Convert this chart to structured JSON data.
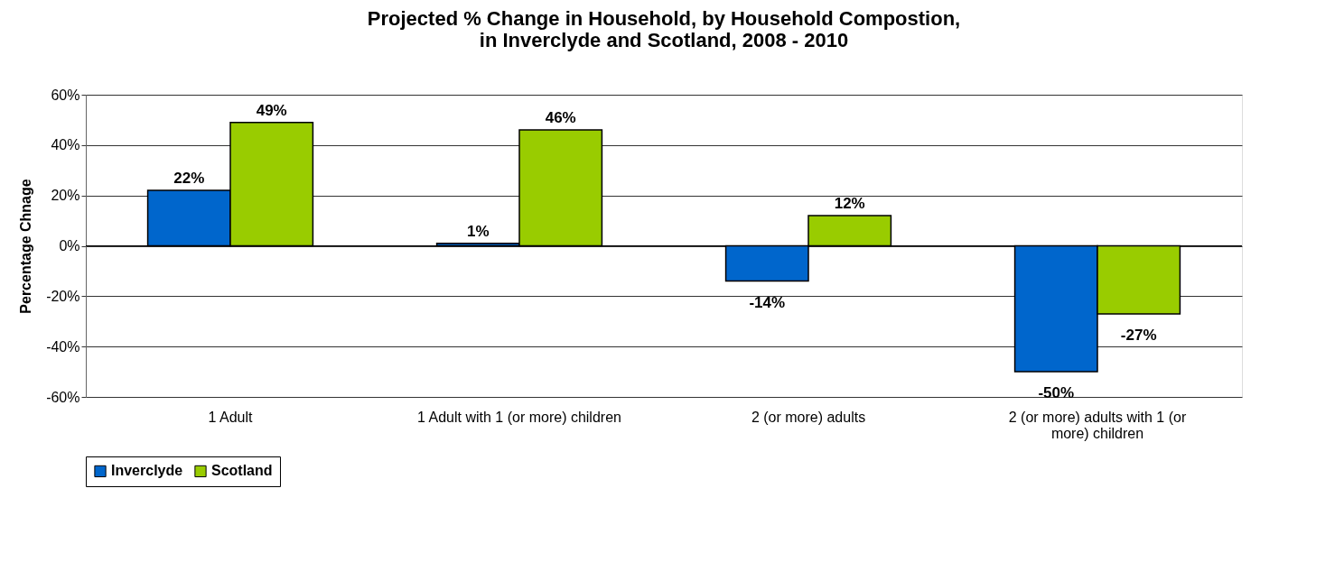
{
  "chart_data": {
    "type": "bar",
    "title": [
      "Projected % Change in Household, by Household Compostion,",
      "in Inverclyde and Scotland, 2008 - 2010"
    ],
    "ylabel": "Percentage Chnage",
    "categories": [
      "1 Adult",
      "1 Adult with 1 (or more) children",
      "2 (or more) adults",
      "2 (or more) adults with 1 (or more) children"
    ],
    "series": [
      {
        "name": "Inverclyde",
        "color": "#0066cc",
        "values": [
          22,
          1,
          -14,
          -50
        ],
        "value_labels": [
          "22%",
          "1%",
          "-14%",
          "-50%"
        ]
      },
      {
        "name": "Scotland",
        "color": "#99cc00",
        "values": [
          49,
          46,
          12,
          -27
        ],
        "value_labels": [
          "49%",
          "46%",
          "12%",
          "-27%"
        ]
      }
    ],
    "ylim": [
      -60,
      60
    ],
    "yticks": [
      {
        "value": -60,
        "label": "-60%"
      },
      {
        "value": -40,
        "label": "-40%"
      },
      {
        "value": -20,
        "label": "-20%"
      },
      {
        "value": 0,
        "label": "0%"
      },
      {
        "value": 20,
        "label": "20%"
      },
      {
        "value": 40,
        "label": "40%"
      },
      {
        "value": 60,
        "label": "60%"
      }
    ],
    "grid": "y",
    "legend": "bottom"
  }
}
